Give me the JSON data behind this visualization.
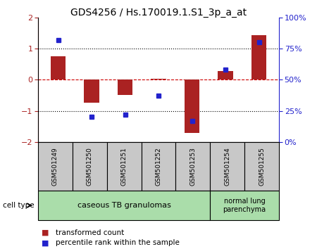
{
  "title": "GDS4256 / Hs.170019.1.S1_3p_a_at",
  "samples": [
    "GSM501249",
    "GSM501250",
    "GSM501251",
    "GSM501252",
    "GSM501253",
    "GSM501254",
    "GSM501255"
  ],
  "transformed_count": [
    0.75,
    -0.75,
    -0.5,
    0.02,
    -1.72,
    0.28,
    1.42
  ],
  "percentile_rank": [
    82,
    20,
    22,
    37,
    17,
    58,
    80
  ],
  "ylim_left": [
    -2,
    2
  ],
  "ylim_right": [
    0,
    100
  ],
  "yticks_left": [
    -2,
    -1,
    0,
    1,
    2
  ],
  "yticks_right": [
    0,
    25,
    50,
    75,
    100
  ],
  "ytick_labels_right": [
    "0%",
    "25%",
    "50%",
    "75%",
    "100%"
  ],
  "group1_n": 5,
  "group2_n": 2,
  "group1_label": "caseous TB granulomas",
  "group2_label": "normal lung\nparenchyma",
  "bar_color": "#aa2222",
  "dot_color": "#2222cc",
  "zero_line_color": "#cc0000",
  "group1_bg": "#aaddaa",
  "group2_bg": "#aaddaa",
  "tick_label_bg": "#c8c8c8",
  "legend_red_label": "transformed count",
  "legend_blue_label": "percentile rank within the sample",
  "cell_type_label": "cell type"
}
